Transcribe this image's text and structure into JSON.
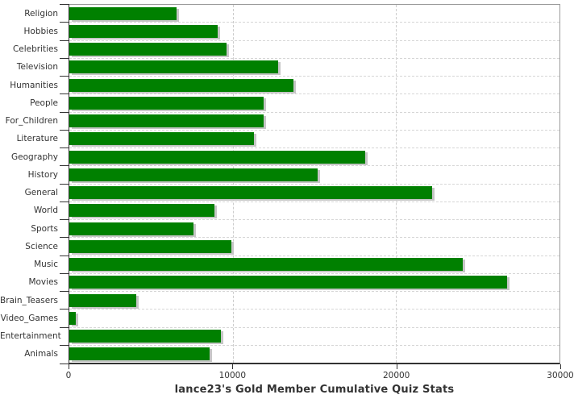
{
  "chart_data": {
    "type": "bar",
    "orientation": "horizontal",
    "title": "lance23's Gold Member Cumulative Quiz Stats",
    "categories": [
      "Religion",
      "Hobbies",
      "Celebrities",
      "Television",
      "Humanities",
      "People",
      "For_Children",
      "Literature",
      "Geography",
      "History",
      "General",
      "World",
      "Sports",
      "Science",
      "Music",
      "Movies",
      "Brain_Teasers",
      "Video_Games",
      "Entertainment",
      "Animals"
    ],
    "values": [
      6550,
      9100,
      9600,
      12800,
      13700,
      11900,
      11900,
      11300,
      18100,
      15200,
      22200,
      8900,
      7600,
      9900,
      24100,
      26800,
      4100,
      400,
      9300,
      8600
    ],
    "xlabel": "",
    "ylabel": "",
    "xlim": [
      0,
      30000
    ],
    "x_ticks": [
      0,
      10000,
      20000,
      30000
    ],
    "x_tick_labels": [
      "0",
      "10000",
      "20000",
      "30000"
    ],
    "grid": "dashed vertical and horizontal gridlines",
    "legend": "none",
    "colors": {
      "bar": "#008000",
      "bar_shadow": "#c6c6c6",
      "gridline": "#cccccc",
      "axis": "#333333",
      "plot_border": "#9a9a9a",
      "text": "#333333",
      "background": "#ffffff"
    }
  }
}
